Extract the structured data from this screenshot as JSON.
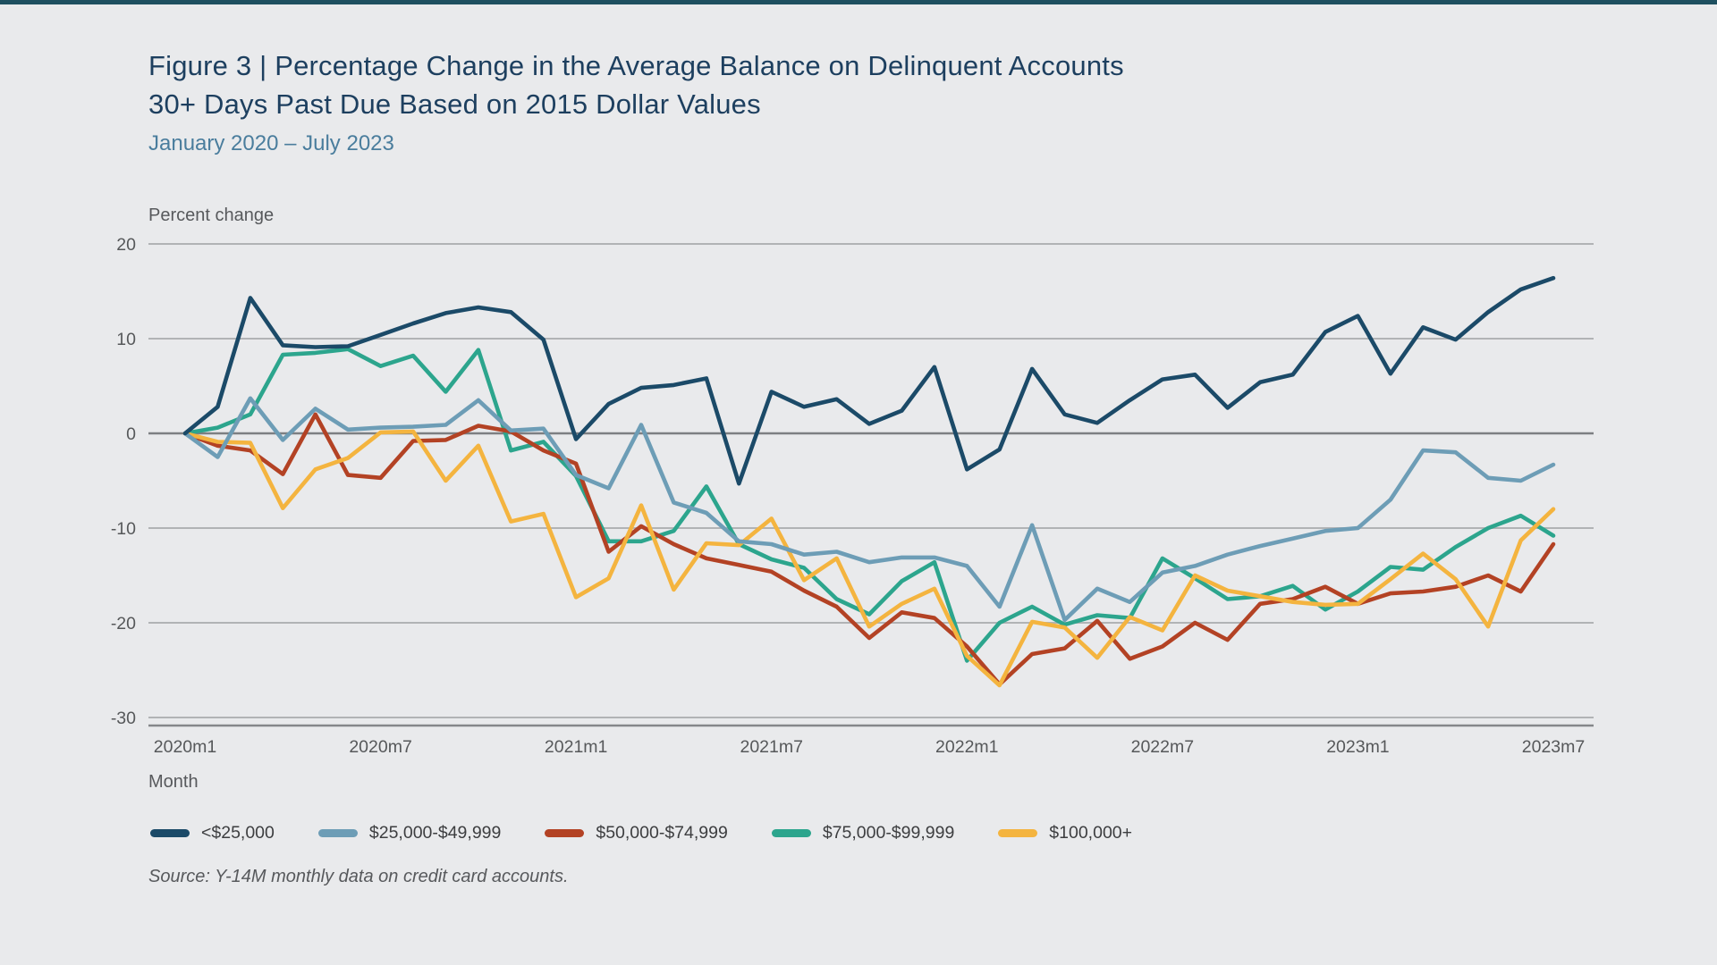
{
  "colors": {
    "background": "#e9eaec",
    "top_bar": "#1e5060",
    "title": "#1d3f5f",
    "subtitle": "#4a7d9d",
    "gridline": "#b1b3b5",
    "zero_line": "#7d7f82",
    "axis_line": "#85878a",
    "tick_text": "#56585a"
  },
  "header": {
    "title_line1": "Figure 3 | Percentage Change in the Average Balance on Delinquent Accounts",
    "title_line2": "30+ Days Past Due Based on 2015 Dollar Values",
    "subtitle": "January 2020 – July 2023"
  },
  "chart_data": {
    "type": "line",
    "title": "Percentage Change in the Average Balance on Delinquent Accounts 30+ Days Past Due Based on 2015 Dollar Values",
    "ylabel": "Percent change",
    "xlabel": "Month",
    "ylim": [
      -30,
      20
    ],
    "grid": true,
    "legend_position": "bottom",
    "y_ticks": [
      20,
      10,
      0,
      -10,
      -20,
      -30
    ],
    "x_tick_labels": [
      "2020m1",
      "2020m7",
      "2021m1",
      "2021m7",
      "2022m1",
      "2022m7",
      "2023m1",
      "2023m7"
    ],
    "x_tick_positions": [
      0,
      6,
      12,
      18,
      24,
      30,
      36,
      42
    ],
    "months": [
      "2020m1",
      "2020m2",
      "2020m3",
      "2020m4",
      "2020m5",
      "2020m6",
      "2020m7",
      "2020m8",
      "2020m9",
      "2020m10",
      "2020m11",
      "2020m12",
      "2021m1",
      "2021m2",
      "2021m3",
      "2021m4",
      "2021m5",
      "2021m6",
      "2021m7",
      "2021m8",
      "2021m9",
      "2021m10",
      "2021m11",
      "2021m12",
      "2022m1",
      "2022m2",
      "2022m3",
      "2022m4",
      "2022m5",
      "2022m6",
      "2022m7",
      "2022m8",
      "2022m9",
      "2022m10",
      "2022m11",
      "2022m12",
      "2023m1",
      "2023m2",
      "2023m3",
      "2023m4",
      "2023m5",
      "2023m6",
      "2023m7"
    ],
    "series": [
      {
        "name": "<$25,000",
        "color": "#1b4a68",
        "values": [
          0,
          2.8,
          14.3,
          9.3,
          9.1,
          9.2,
          10.4,
          11.6,
          12.7,
          13.3,
          12.8,
          9.9,
          -0.6,
          3.1,
          4.8,
          5.1,
          5.8,
          -5.3,
          4.4,
          2.8,
          3.6,
          1.0,
          2.4,
          7.0,
          -3.8,
          -1.7,
          6.8,
          2.0,
          1.1,
          3.5,
          5.7,
          6.2,
          2.7,
          5.4,
          6.2,
          10.7,
          12.4,
          6.3,
          11.2,
          9.9,
          12.8,
          15.2,
          16.4
        ]
      },
      {
        "name": "$25,000-$49,999",
        "color": "#6d9db6",
        "values": [
          0,
          -2.5,
          3.7,
          -0.7,
          2.6,
          0.4,
          0.6,
          0.7,
          0.9,
          3.5,
          0.3,
          0.5,
          -4.4,
          -5.8,
          0.9,
          -7.3,
          -8.4,
          -11.4,
          -11.7,
          -12.8,
          -12.5,
          -13.6,
          -13.1,
          -13.1,
          -14.0,
          -18.3,
          -9.7,
          -19.7,
          -16.4,
          -17.8,
          -14.7,
          -14.0,
          -12.8,
          -11.9,
          -11.1,
          -10.3,
          -10.0,
          -7.0,
          -1.8,
          -2.0,
          -4.7,
          -5.0,
          -3.3
        ]
      },
      {
        "name": "$50,000-$74,999",
        "color": "#b34224",
        "values": [
          0,
          -1.3,
          -1.8,
          -4.3,
          2.0,
          -4.4,
          -4.7,
          -0.8,
          -0.7,
          0.8,
          0.2,
          -1.8,
          -3.2,
          -12.5,
          -9.8,
          -11.7,
          -13.2,
          -13.9,
          -14.6,
          -16.6,
          -18.3,
          -21.6,
          -18.9,
          -19.5,
          -22.5,
          -26.5,
          -23.3,
          -22.7,
          -19.8,
          -23.8,
          -22.5,
          -20.0,
          -21.8,
          -18.0,
          -17.5,
          -16.2,
          -18.0,
          -16.9,
          -16.7,
          -16.2,
          -15.0,
          -16.7,
          -11.7
        ]
      },
      {
        "name": "$75,000-$99,999",
        "color": "#2ca58d",
        "values": [
          0,
          0.6,
          2.0,
          8.3,
          8.5,
          8.9,
          7.1,
          8.2,
          4.4,
          8.8,
          -1.8,
          -0.9,
          -4.5,
          -11.4,
          -11.4,
          -10.3,
          -5.6,
          -11.7,
          -13.3,
          -14.2,
          -17.5,
          -19.1,
          -15.6,
          -13.6,
          -24.0,
          -20.0,
          -18.3,
          -20.2,
          -19.2,
          -19.5,
          -13.2,
          -15.3,
          -17.5,
          -17.2,
          -16.1,
          -18.6,
          -16.7,
          -14.1,
          -14.4,
          -12.0,
          -10.0,
          -8.7,
          -10.8
        ]
      },
      {
        "name": "$100,000+",
        "color": "#f4b43f",
        "values": [
          0,
          -0.9,
          -1.0,
          -7.9,
          -3.8,
          -2.6,
          0.1,
          0.2,
          -5.0,
          -1.3,
          -9.3,
          -8.5,
          -17.3,
          -15.3,
          -7.6,
          -16.5,
          -11.6,
          -11.8,
          -9.0,
          -15.5,
          -13.2,
          -20.4,
          -18.0,
          -16.4,
          -23.5,
          -26.6,
          -19.9,
          -20.5,
          -23.7,
          -19.4,
          -20.8,
          -15.0,
          -16.6,
          -17.2,
          -17.8,
          -18.1,
          -18.0,
          -15.4,
          -12.7,
          -15.4,
          -20.4,
          -11.3,
          -8.0
        ]
      }
    ],
    "source": "Source: Y-14M monthly data on credit card accounts."
  }
}
